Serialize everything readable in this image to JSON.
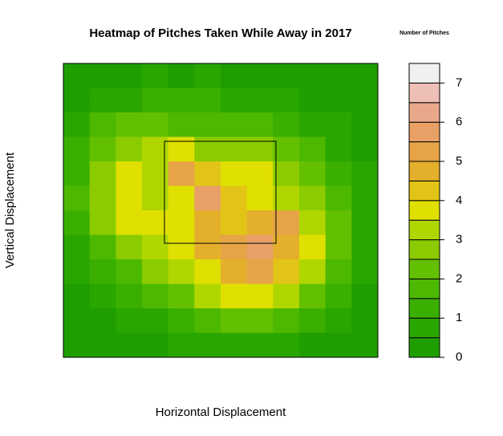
{
  "chart_data": {
    "type": "heatmap",
    "title": "Heatmap of Pitches Taken While Away in 2017",
    "x_label": "Horizontal Displacement",
    "y_label": "Vertical Displacement",
    "z": [
      [
        0.2,
        0.3,
        0.4,
        0.5,
        0.4,
        0.5,
        0.4,
        0.3,
        0.3,
        0.2,
        0.2,
        0.2
      ],
      [
        0.3,
        0.5,
        0.8,
        1.2,
        1.0,
        1.2,
        0.8,
        0.6,
        0.5,
        0.3,
        0.3,
        0.2
      ],
      [
        0.5,
        1.5,
        2.0,
        2.2,
        1.8,
        1.5,
        1.5,
        1.8,
        1.2,
        0.8,
        0.5,
        0.3
      ],
      [
        1.0,
        2.0,
        2.8,
        3.2,
        3.5,
        2.8,
        2.5,
        2.6,
        2.0,
        1.5,
        0.8,
        0.4
      ],
      [
        1.2,
        2.5,
        3.5,
        3.3,
        5.2,
        4.0,
        3.8,
        3.5,
        2.8,
        2.2,
        1.2,
        0.5
      ],
      [
        1.5,
        2.8,
        3.6,
        3.0,
        3.8,
        5.5,
        4.2,
        3.5,
        3.0,
        2.5,
        1.5,
        0.6
      ],
      [
        1.2,
        2.5,
        3.8,
        3.5,
        3.8,
        4.6,
        4.0,
        4.8,
        5.2,
        3.2,
        2.0,
        0.8
      ],
      [
        0.8,
        1.8,
        2.8,
        3.2,
        3.5,
        4.8,
        5.0,
        5.5,
        4.6,
        3.6,
        2.2,
        0.8
      ],
      [
        0.5,
        1.0,
        1.8,
        2.5,
        3.0,
        3.8,
        4.5,
        5.0,
        4.0,
        3.0,
        1.8,
        0.6
      ],
      [
        0.3,
        0.6,
        1.0,
        1.5,
        2.2,
        3.0,
        3.5,
        3.8,
        3.0,
        2.0,
        1.0,
        0.4
      ],
      [
        0.2,
        0.3,
        0.5,
        0.8,
        1.2,
        1.8,
        2.0,
        2.0,
        1.5,
        1.0,
        0.5,
        0.3
      ],
      [
        0.2,
        0.2,
        0.3,
        0.4,
        0.5,
        0.8,
        0.8,
        0.8,
        0.6,
        0.4,
        0.3,
        0.2
      ]
    ],
    "colorbar": {
      "title": "Number of Pitches",
      "levels": [
        0,
        0.5,
        1,
        1.5,
        2,
        2.5,
        3,
        3.5,
        4,
        4.5,
        5,
        5.5,
        6,
        6.5,
        7,
        7.5
      ],
      "colors": [
        "#1f9e00",
        "#2aa600",
        "#3aaf00",
        "#4db800",
        "#63c000",
        "#8bcb00",
        "#b0d600",
        "#dfe000",
        "#e2c416",
        "#e4b02c",
        "#e6a446",
        "#e8a066",
        "#eaa88a",
        "#edbfb6",
        "#f1f0f0"
      ],
      "ticks": [
        0,
        1,
        2,
        3,
        4,
        5,
        6,
        7
      ],
      "zlim": [
        0,
        7.5
      ]
    }
  }
}
